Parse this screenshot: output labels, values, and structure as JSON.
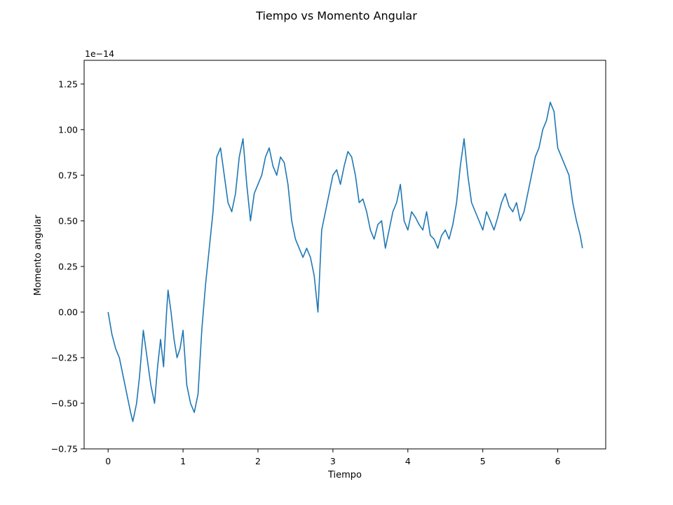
{
  "chart_data": {
    "type": "line",
    "title": "Tiempo vs Momento Angular",
    "xlabel": "Tiempo",
    "ylabel": "Momento angular",
    "offset_label": "1e−14",
    "xlim": [
      -0.32,
      6.64
    ],
    "ylim": [
      -0.75,
      1.38
    ],
    "x_ticks": [
      0,
      1,
      2,
      3,
      4,
      5,
      6
    ],
    "x_tick_labels": [
      "0",
      "1",
      "2",
      "3",
      "4",
      "5",
      "6"
    ],
    "y_ticks": [
      -0.75,
      -0.5,
      -0.25,
      0.0,
      0.25,
      0.5,
      0.75,
      1.0,
      1.25
    ],
    "y_tick_labels": [
      "−0.75",
      "−0.50",
      "−0.25",
      "0.00",
      "0.25",
      "0.50",
      "0.75",
      "1.00",
      "1.25"
    ],
    "grid": false,
    "series": [
      {
        "color": "#1f77b4",
        "x": [
          0.0,
          0.05,
          0.1,
          0.15,
          0.2,
          0.25,
          0.3,
          0.33,
          0.38,
          0.42,
          0.47,
          0.52,
          0.57,
          0.62,
          0.66,
          0.7,
          0.74,
          0.78,
          0.8,
          0.84,
          0.88,
          0.92,
          0.96,
          1.0,
          1.05,
          1.1,
          1.15,
          1.2,
          1.25,
          1.3,
          1.35,
          1.4,
          1.45,
          1.5,
          1.55,
          1.6,
          1.65,
          1.7,
          1.75,
          1.8,
          1.85,
          1.9,
          1.95,
          2.0,
          2.05,
          2.1,
          2.15,
          2.2,
          2.25,
          2.3,
          2.35,
          2.4,
          2.45,
          2.5,
          2.55,
          2.6,
          2.65,
          2.7,
          2.75,
          2.8,
          2.85,
          2.9,
          2.95,
          3.0,
          3.05,
          3.1,
          3.15,
          3.2,
          3.25,
          3.3,
          3.35,
          3.4,
          3.45,
          3.5,
          3.55,
          3.6,
          3.65,
          3.7,
          3.75,
          3.8,
          3.85,
          3.9,
          3.95,
          4.0,
          4.05,
          4.1,
          4.15,
          4.2,
          4.25,
          4.3,
          4.35,
          4.4,
          4.45,
          4.5,
          4.55,
          4.6,
          4.65,
          4.7,
          4.75,
          4.8,
          4.85,
          4.9,
          4.95,
          5.0,
          5.05,
          5.1,
          5.15,
          5.2,
          5.25,
          5.3,
          5.35,
          5.4,
          5.45,
          5.5,
          5.55,
          5.6,
          5.65,
          5.7,
          5.75,
          5.8,
          5.85,
          5.9,
          5.95,
          6.0,
          6.05,
          6.1,
          6.15,
          6.2,
          6.25,
          6.3,
          6.33
        ],
        "y": [
          0.0,
          -0.12,
          -0.2,
          -0.25,
          -0.35,
          -0.45,
          -0.55,
          -0.6,
          -0.5,
          -0.35,
          -0.1,
          -0.25,
          -0.4,
          -0.5,
          -0.3,
          -0.15,
          -0.3,
          0.0,
          0.12,
          0.0,
          -0.15,
          -0.25,
          -0.2,
          -0.1,
          -0.4,
          -0.5,
          -0.55,
          -0.45,
          -0.1,
          0.15,
          0.35,
          0.55,
          0.85,
          0.9,
          0.75,
          0.6,
          0.55,
          0.65,
          0.85,
          0.95,
          0.7,
          0.5,
          0.65,
          0.7,
          0.75,
          0.85,
          0.9,
          0.8,
          0.75,
          0.85,
          0.82,
          0.7,
          0.5,
          0.4,
          0.35,
          0.3,
          0.35,
          0.3,
          0.2,
          0.0,
          0.45,
          0.55,
          0.65,
          0.75,
          0.78,
          0.7,
          0.8,
          0.88,
          0.85,
          0.75,
          0.6,
          0.62,
          0.55,
          0.45,
          0.4,
          0.48,
          0.5,
          0.35,
          0.45,
          0.55,
          0.6,
          0.7,
          0.5,
          0.45,
          0.55,
          0.52,
          0.48,
          0.45,
          0.55,
          0.42,
          0.4,
          0.35,
          0.42,
          0.45,
          0.4,
          0.48,
          0.6,
          0.8,
          0.95,
          0.75,
          0.6,
          0.55,
          0.5,
          0.45,
          0.55,
          0.5,
          0.45,
          0.52,
          0.6,
          0.65,
          0.58,
          0.55,
          0.6,
          0.5,
          0.55,
          0.65,
          0.75,
          0.85,
          0.9,
          1.0,
          1.05,
          1.15,
          1.1,
          0.9,
          0.85,
          0.8,
          0.75,
          0.6,
          0.5,
          0.42,
          0.35
        ]
      }
    ]
  }
}
